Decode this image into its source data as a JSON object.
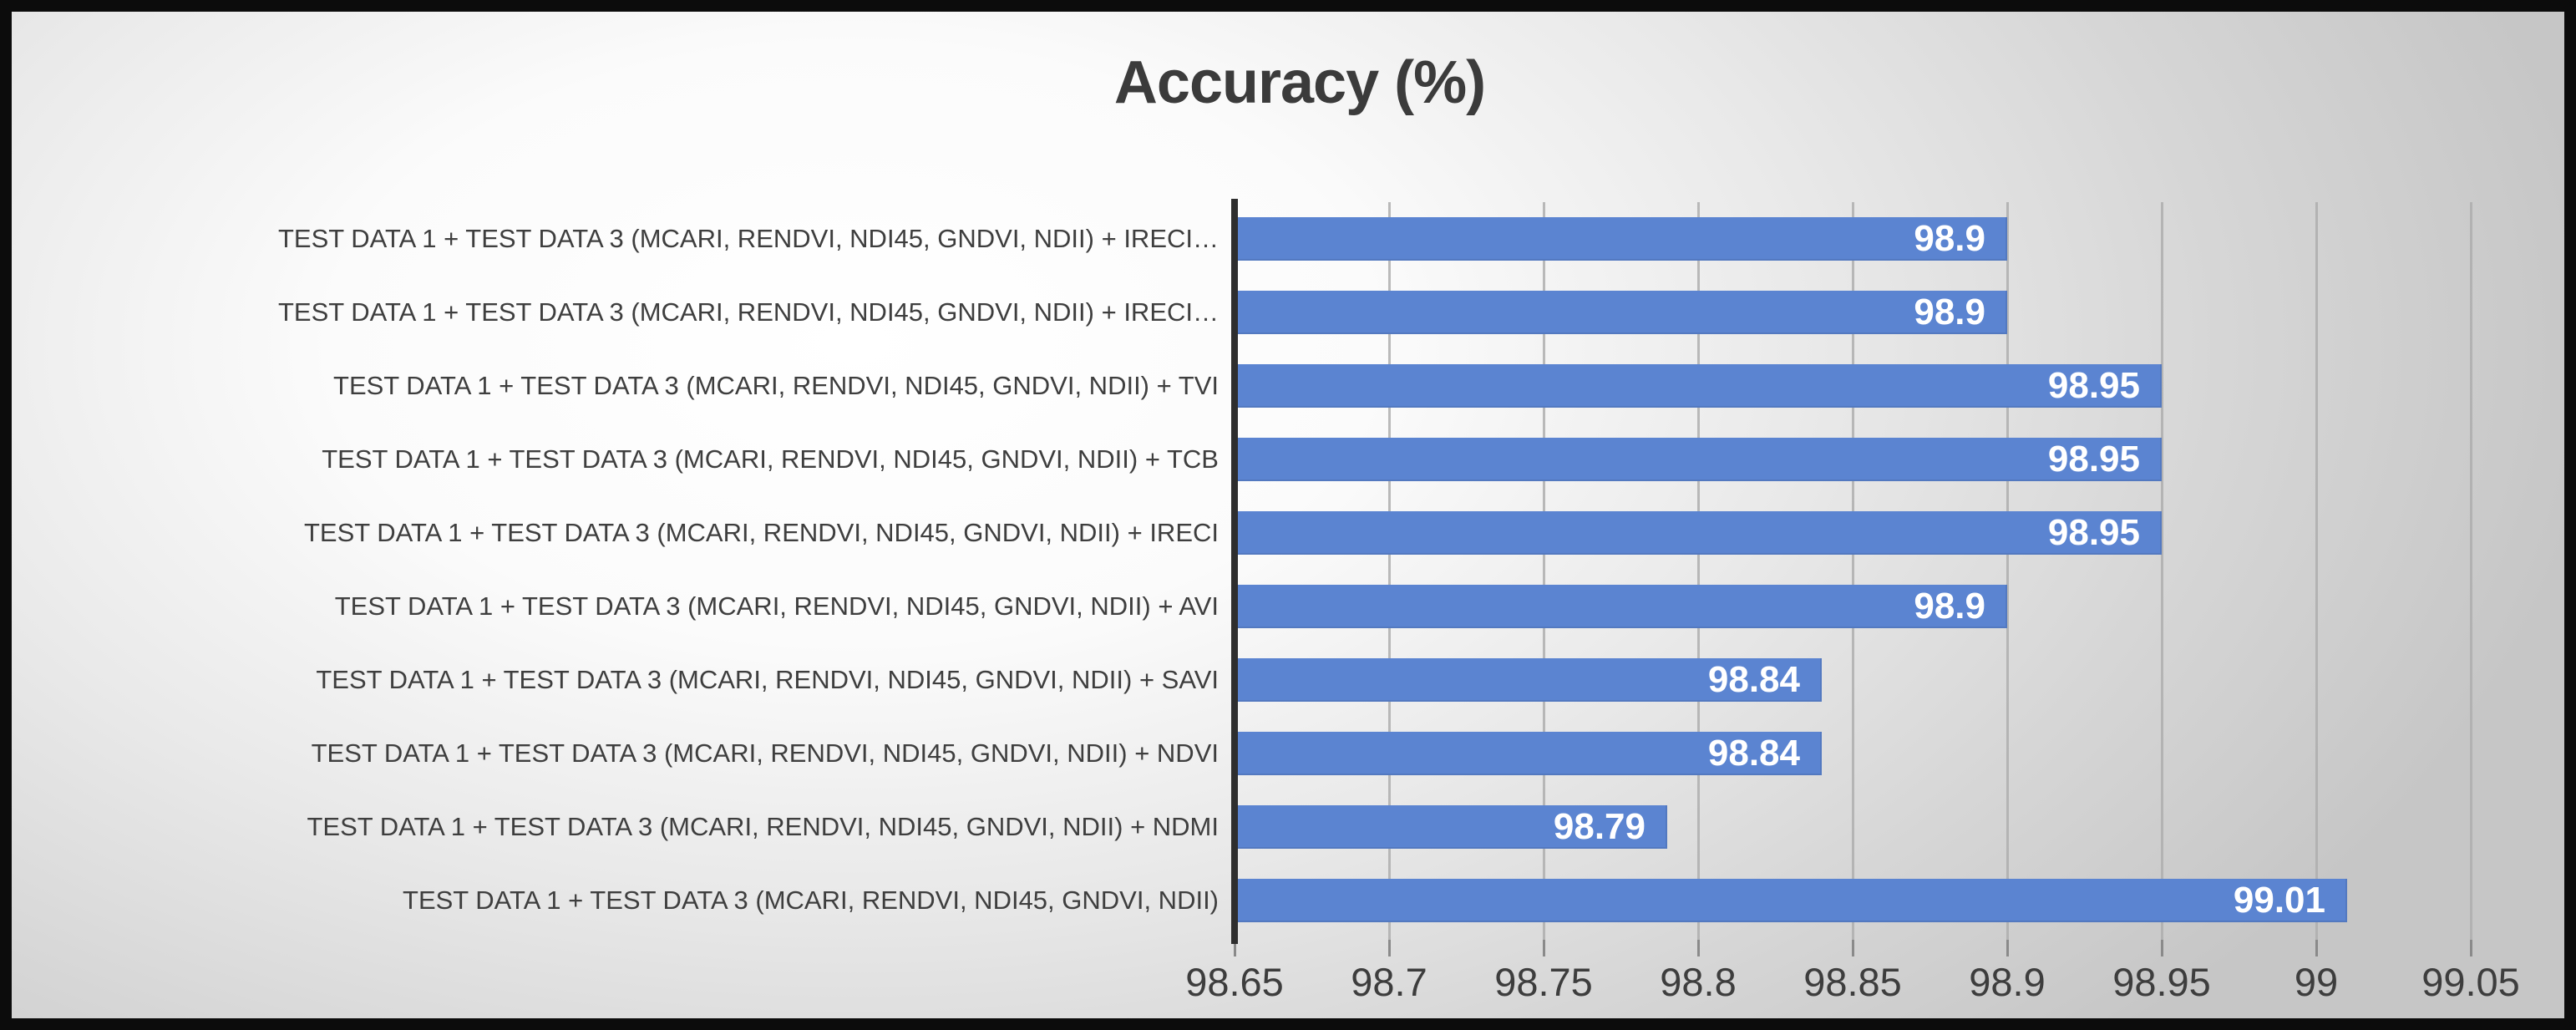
{
  "title": "Accuracy (%)",
  "colors": {
    "bar": "#5b84d1",
    "title_text": "#3b3b3b",
    "category_text": "#3e3e3e",
    "value_text": "#ffffff",
    "axis_line": "#2e2e2e",
    "gridline": "#aeaeae",
    "border": "#0c0c0c"
  },
  "chart_data": {
    "type": "bar",
    "orientation": "horizontal",
    "title": "Accuracy (%)",
    "categories": [
      "TEST DATA 1 + TEST DATA 3 (MCARI, RENDVI, NDI45, GNDVI, NDII) + IRECI…",
      "TEST DATA 1 + TEST DATA 3 (MCARI, RENDVI, NDI45, GNDVI, NDII) + IRECI…",
      "TEST DATA 1 + TEST DATA 3 (MCARI, RENDVI, NDI45, GNDVI, NDII) + TVI",
      "TEST DATA 1 + TEST DATA 3 (MCARI, RENDVI, NDI45, GNDVI, NDII) + TCB",
      "TEST DATA 1 + TEST DATA 3 (MCARI, RENDVI, NDI45, GNDVI, NDII) + IRECI",
      "TEST DATA 1 + TEST DATA 3 (MCARI, RENDVI, NDI45, GNDVI, NDII) + AVI",
      "TEST DATA 1 + TEST DATA 3 (MCARI, RENDVI, NDI45, GNDVI, NDII) + SAVI",
      "TEST DATA 1 + TEST DATA 3 (MCARI, RENDVI, NDI45, GNDVI, NDII) + NDVI",
      "TEST DATA 1 + TEST DATA 3 (MCARI, RENDVI, NDI45, GNDVI, NDII) + NDMI",
      "TEST DATA 1 + TEST DATA 3 (MCARI, RENDVI, NDI45, GNDVI, NDII)"
    ],
    "values": [
      98.9,
      98.9,
      98.95,
      98.95,
      98.95,
      98.9,
      98.84,
      98.84,
      98.79,
      99.01
    ],
    "value_labels": [
      "98.9",
      "98.9",
      "98.95",
      "98.95",
      "98.95",
      "98.9",
      "98.84",
      "98.84",
      "98.79",
      "99.01"
    ],
    "xlim": [
      98.65,
      99.05
    ],
    "x_tick_values": [
      98.65,
      98.7,
      98.75,
      98.8,
      98.85,
      98.9,
      98.95,
      99,
      99.05
    ],
    "x_tick_labels": [
      "98.65",
      "98.7",
      "98.75",
      "98.8",
      "98.85",
      "98.9",
      "98.95",
      "99",
      "99.05"
    ],
    "xlabel": "",
    "ylabel": "",
    "grid": true,
    "legend": false
  }
}
